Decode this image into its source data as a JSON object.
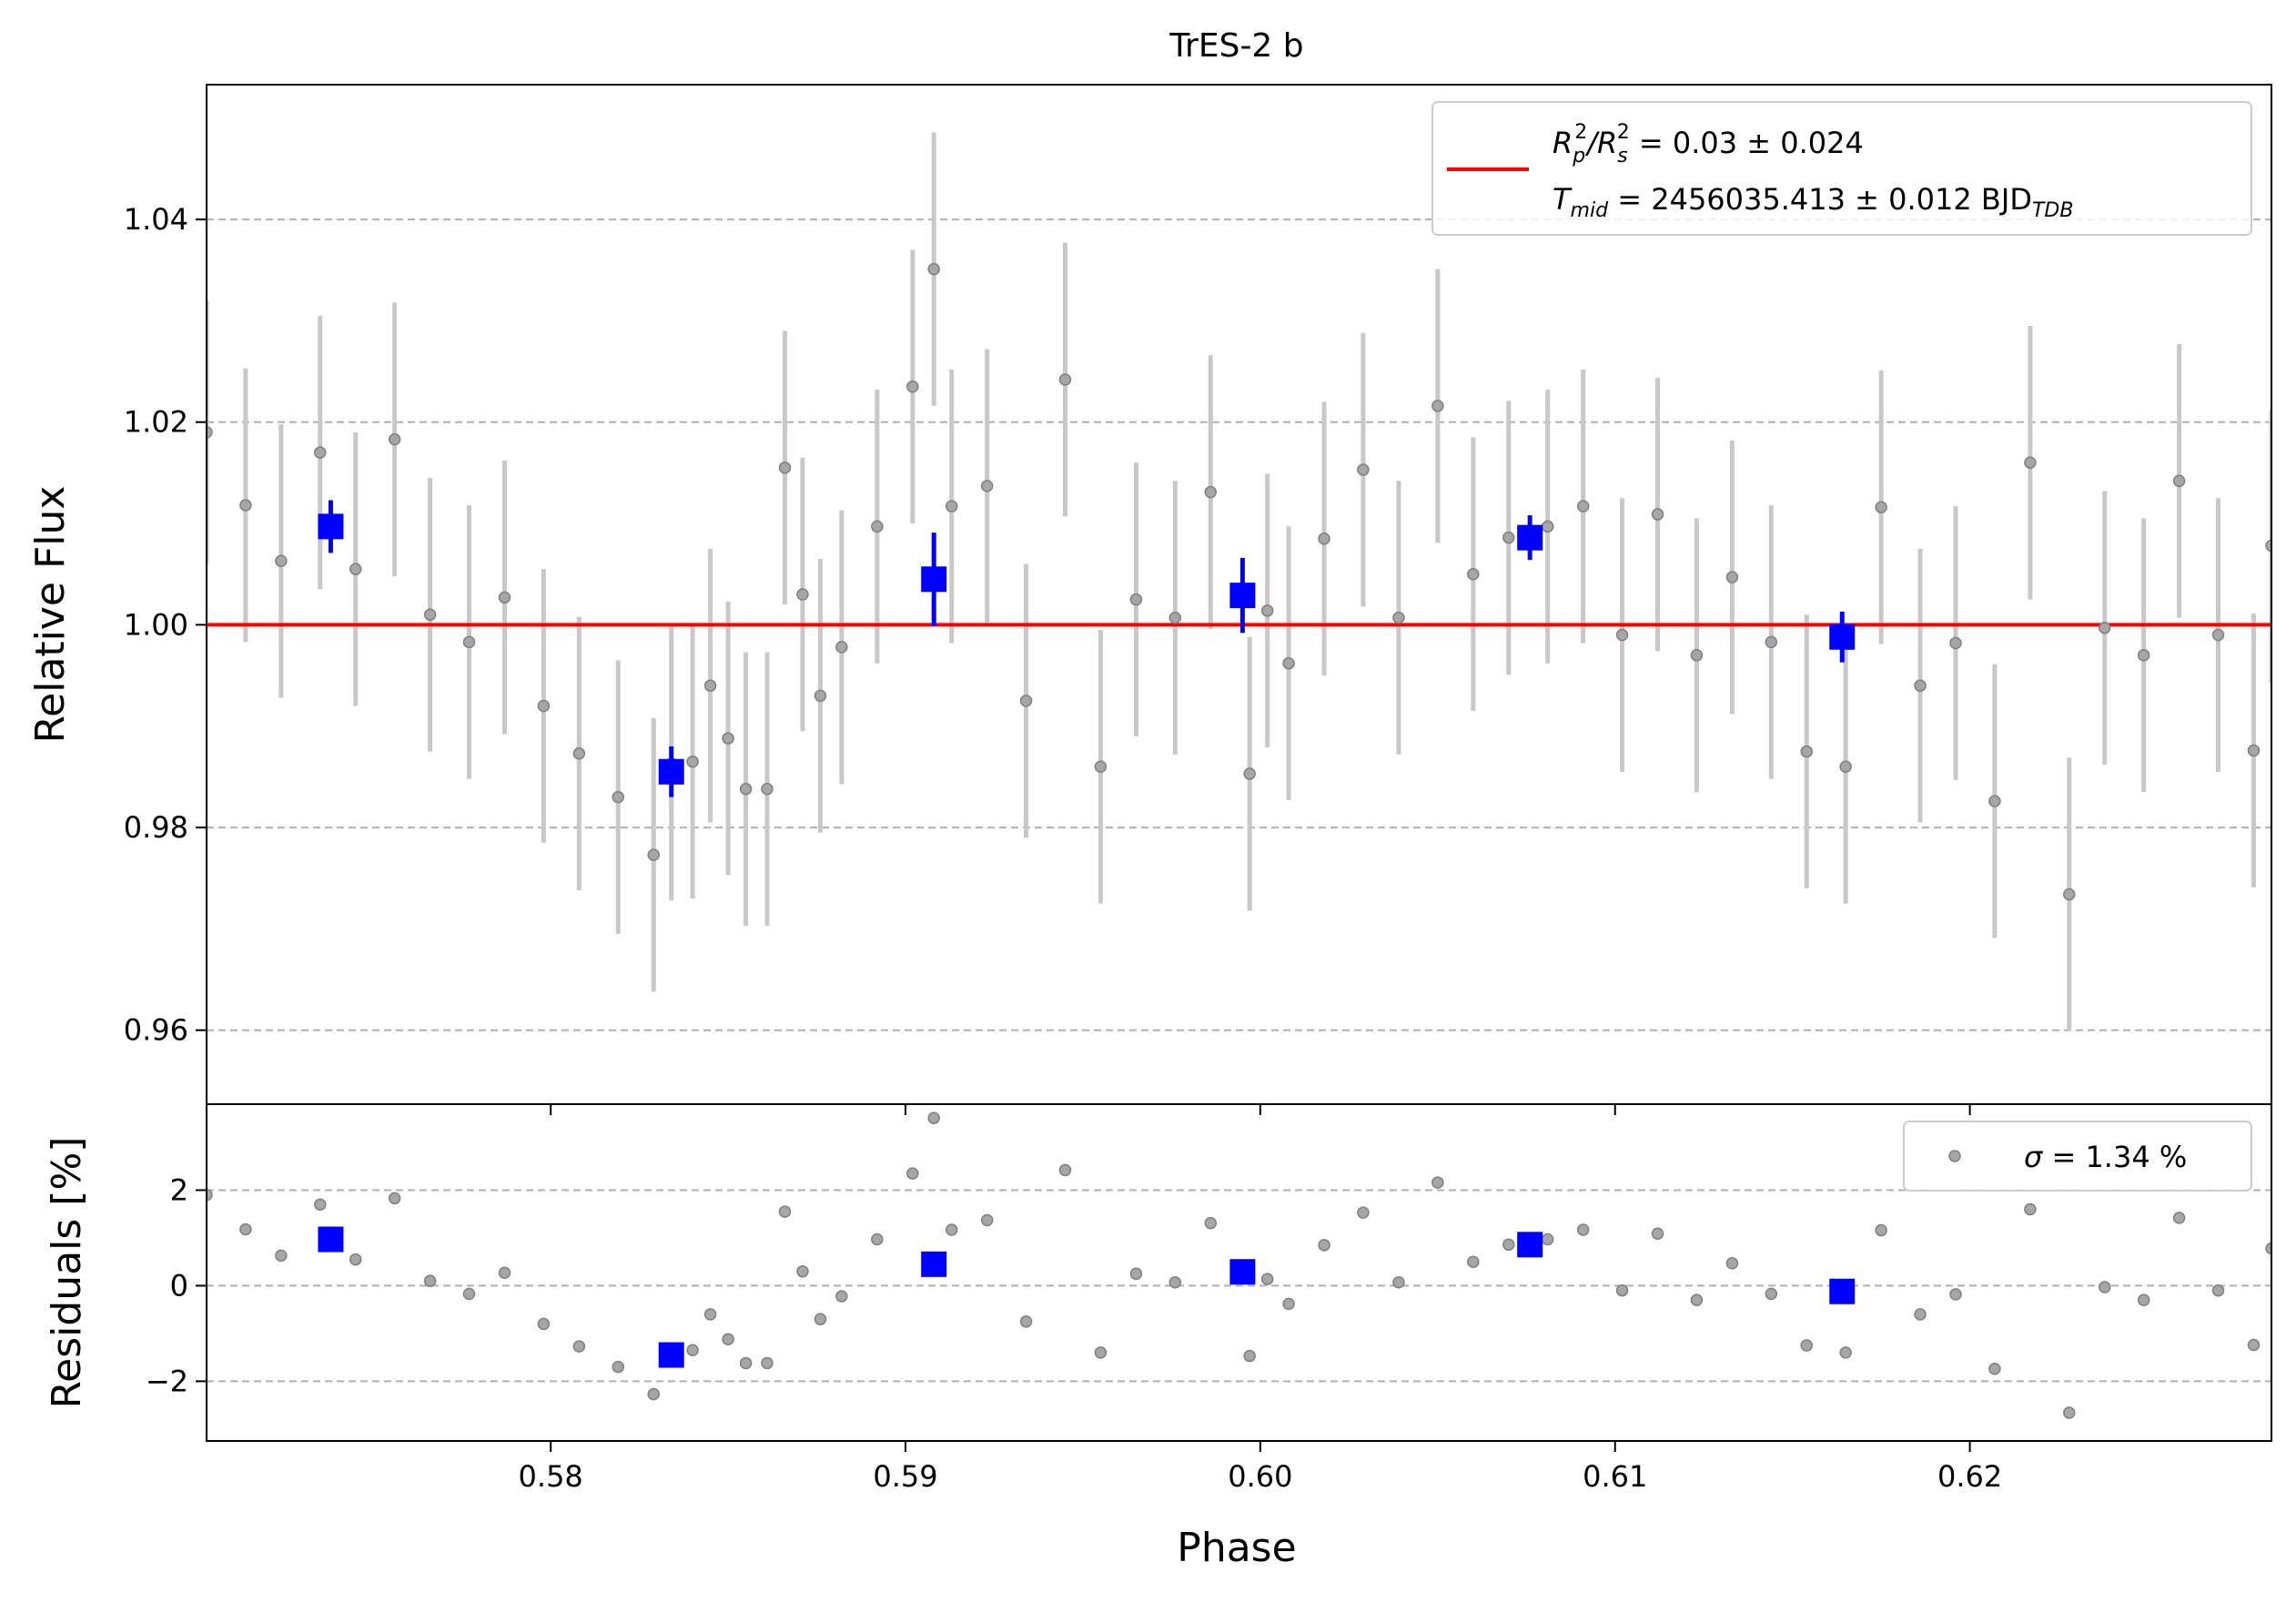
{
  "chart_data": [
    {
      "type": "scatter",
      "panel": "main",
      "title": "TrES-2 b",
      "xlabel": "",
      "ylabel": "Relative Flux",
      "xlim": [
        0.5703,
        0.6285
      ],
      "ylim": [
        0.9527,
        1.0533
      ],
      "grid": "horizontal dashed",
      "xticks": [
        0.58,
        0.59,
        0.6,
        0.61,
        0.62
      ],
      "xtick_labels": [
        "0.58",
        "0.59",
        "0.60",
        "0.61",
        "0.62"
      ],
      "yticks": [
        0.96,
        0.98,
        1.0,
        1.02,
        1.04
      ],
      "ytick_labels": [
        "0.96",
        "0.98",
        "1.00",
        "1.02",
        "1.04"
      ],
      "model_line": {
        "y": 1.0,
        "color": "#ff0000"
      },
      "legend": {
        "position": "upper-right",
        "entries": [
          {
            "prefix": "R",
            "sub1": "p",
            "sup1": "2",
            "slash": "/R",
            "sub2": "s",
            "sup2": "2",
            "text": " = 0.03 ± 0.024"
          },
          {
            "prefix": "T",
            "sub1": "mid",
            "text": " = 2456035.413 ± 0.012 BJD",
            "sub2": "TDB"
          }
        ]
      },
      "raw_points": {
        "color": "#808080",
        "errbar_color": "#c8c8c8",
        "x": [
          0.5703,
          0.5714,
          0.5724,
          0.5735,
          0.5745,
          0.5756,
          0.5766,
          0.5777,
          0.5787,
          0.5798,
          0.5808,
          0.5819,
          0.5829,
          0.5834,
          0.584,
          0.5845,
          0.585,
          0.5855,
          0.5861,
          0.5866,
          0.5871,
          0.5876,
          0.5882,
          0.5892,
          0.5902,
          0.5908,
          0.5913,
          0.5923,
          0.5934,
          0.5945,
          0.5955,
          0.5965,
          0.5976,
          0.5986,
          0.5997,
          0.6002,
          0.6008,
          0.6018,
          0.6029,
          0.6039,
          0.605,
          0.606,
          0.607,
          0.6081,
          0.6091,
          0.6102,
          0.6112,
          0.6123,
          0.6133,
          0.6144,
          0.6154,
          0.6165,
          0.6175,
          0.6186,
          0.6196,
          0.6207,
          0.6217,
          0.6228,
          0.6238,
          0.6249,
          0.6259,
          0.627,
          0.628,
          0.6285
        ],
        "y": [
          1.019,
          1.0118,
          1.0063,
          1.017,
          1.0055,
          1.0183,
          1.001,
          0.9983,
          1.0027,
          0.992,
          0.9873,
          0.983,
          0.9773,
          0.9863,
          0.9865,
          0.994,
          0.9888,
          0.9838,
          0.9838,
          1.0155,
          1.003,
          0.993,
          0.9978,
          1.0097,
          1.0235,
          1.0351,
          1.0117,
          1.0137,
          0.9925,
          1.0242,
          0.986,
          1.0025,
          1.0007,
          1.0131,
          0.9853,
          1.0014,
          0.9962,
          1.0085,
          1.0153,
          1.0007,
          1.0216,
          1.005,
          1.0086,
          1.0097,
          1.0117,
          0.999,
          1.0109,
          0.997,
          1.0047,
          0.9983,
          0.9875,
          0.986,
          1.0116,
          0.994,
          0.9982,
          0.9826,
          1.016,
          0.9734,
          0.9997,
          0.997,
          1.0142,
          0.999,
          0.9876,
          1.0078
        ],
        "yerr": [
          0.013,
          0.0135,
          0.0135,
          0.0135,
          0.0135,
          0.0135,
          0.0135,
          0.0135,
          0.0135,
          0.0135,
          0.0135,
          0.0135,
          0.0135,
          0.0135,
          0.0135,
          0.0135,
          0.0135,
          0.0135,
          0.0135,
          0.0135,
          0.0135,
          0.0135,
          0.0135,
          0.0135,
          0.0135,
          0.0135,
          0.0135,
          0.0135,
          0.0135,
          0.0135,
          0.0135,
          0.0135,
          0.0135,
          0.0135,
          0.0135,
          0.0135,
          0.0135,
          0.0135,
          0.0135,
          0.0135,
          0.0135,
          0.0135,
          0.0135,
          0.0135,
          0.0135,
          0.0135,
          0.0135,
          0.0135,
          0.0135,
          0.0135,
          0.0135,
          0.0135,
          0.0135,
          0.0135,
          0.0135,
          0.0135,
          0.0135,
          0.0135,
          0.0135,
          0.0135,
          0.0135,
          0.0135,
          0.0135,
          0.0135
        ]
      },
      "binned_points": {
        "color": "#0000ff",
        "x": [
          0.5738,
          0.5834,
          0.5908,
          0.5995,
          0.6076,
          0.6164
        ],
        "y": [
          1.0097,
          0.9855,
          1.0045,
          1.0029,
          1.0086,
          0.9988
        ],
        "yerr": [
          0.0026,
          0.0025,
          0.0046,
          0.0037,
          0.0022,
          0.0025
        ]
      }
    },
    {
      "type": "scatter",
      "panel": "residuals",
      "xlabel": "Phase",
      "ylabel": "Residuals [%]",
      "xlim": [
        0.5703,
        0.6285
      ],
      "ylim": [
        -3.25,
        3.8
      ],
      "grid": "horizontal dashed",
      "xticks": [
        0.58,
        0.59,
        0.6,
        0.61,
        0.62
      ],
      "xtick_labels": [
        "0.58",
        "0.59",
        "0.60",
        "0.61",
        "0.62"
      ],
      "yticks": [
        -2,
        0,
        2
      ],
      "ytick_labels": [
        "−2",
        "0",
        "2"
      ],
      "legend": {
        "position": "upper-right",
        "entries": [
          {
            "symbol": "σ",
            "text": " = 1.34 %"
          }
        ]
      },
      "raw_points": {
        "color": "#808080",
        "x": [
          0.5703,
          0.5714,
          0.5724,
          0.5735,
          0.5745,
          0.5756,
          0.5766,
          0.5777,
          0.5787,
          0.5798,
          0.5808,
          0.5819,
          0.5829,
          0.5834,
          0.584,
          0.5845,
          0.585,
          0.5855,
          0.5861,
          0.5866,
          0.5871,
          0.5876,
          0.5882,
          0.5892,
          0.5902,
          0.5908,
          0.5913,
          0.5923,
          0.5934,
          0.5945,
          0.5955,
          0.5965,
          0.5976,
          0.5986,
          0.5997,
          0.6002,
          0.6008,
          0.6018,
          0.6029,
          0.6039,
          0.605,
          0.606,
          0.607,
          0.6081,
          0.6091,
          0.6102,
          0.6112,
          0.6123,
          0.6133,
          0.6144,
          0.6154,
          0.6165,
          0.6175,
          0.6186,
          0.6196,
          0.6207,
          0.6217,
          0.6228,
          0.6238,
          0.6249,
          0.6259,
          0.627,
          0.628,
          0.6285
        ],
        "y": [
          1.9,
          1.18,
          0.63,
          1.7,
          0.55,
          1.83,
          0.1,
          -0.17,
          0.27,
          -0.8,
          -1.27,
          -1.7,
          -2.27,
          -1.37,
          -1.35,
          -0.6,
          -1.12,
          -1.62,
          -1.62,
          1.55,
          0.3,
          -0.7,
          -0.22,
          0.97,
          2.35,
          3.51,
          1.17,
          1.37,
          -0.75,
          2.42,
          -1.4,
          0.25,
          0.07,
          1.31,
          -1.47,
          0.14,
          -0.38,
          0.85,
          1.53,
          0.07,
          2.16,
          0.5,
          0.86,
          0.97,
          1.17,
          -0.1,
          1.09,
          -0.3,
          0.47,
          -0.17,
          -1.25,
          -1.4,
          1.16,
          -0.6,
          -0.18,
          -1.74,
          1.6,
          -2.66,
          -0.03,
          -0.3,
          1.42,
          -0.1,
          -1.24,
          0.78
        ]
      },
      "binned_points": {
        "color": "#0000ff",
        "x": [
          0.5738,
          0.5834,
          0.5908,
          0.5995,
          0.6076,
          0.6164
        ],
        "y": [
          0.97,
          -1.45,
          0.45,
          0.29,
          0.86,
          -0.12
        ]
      }
    }
  ]
}
